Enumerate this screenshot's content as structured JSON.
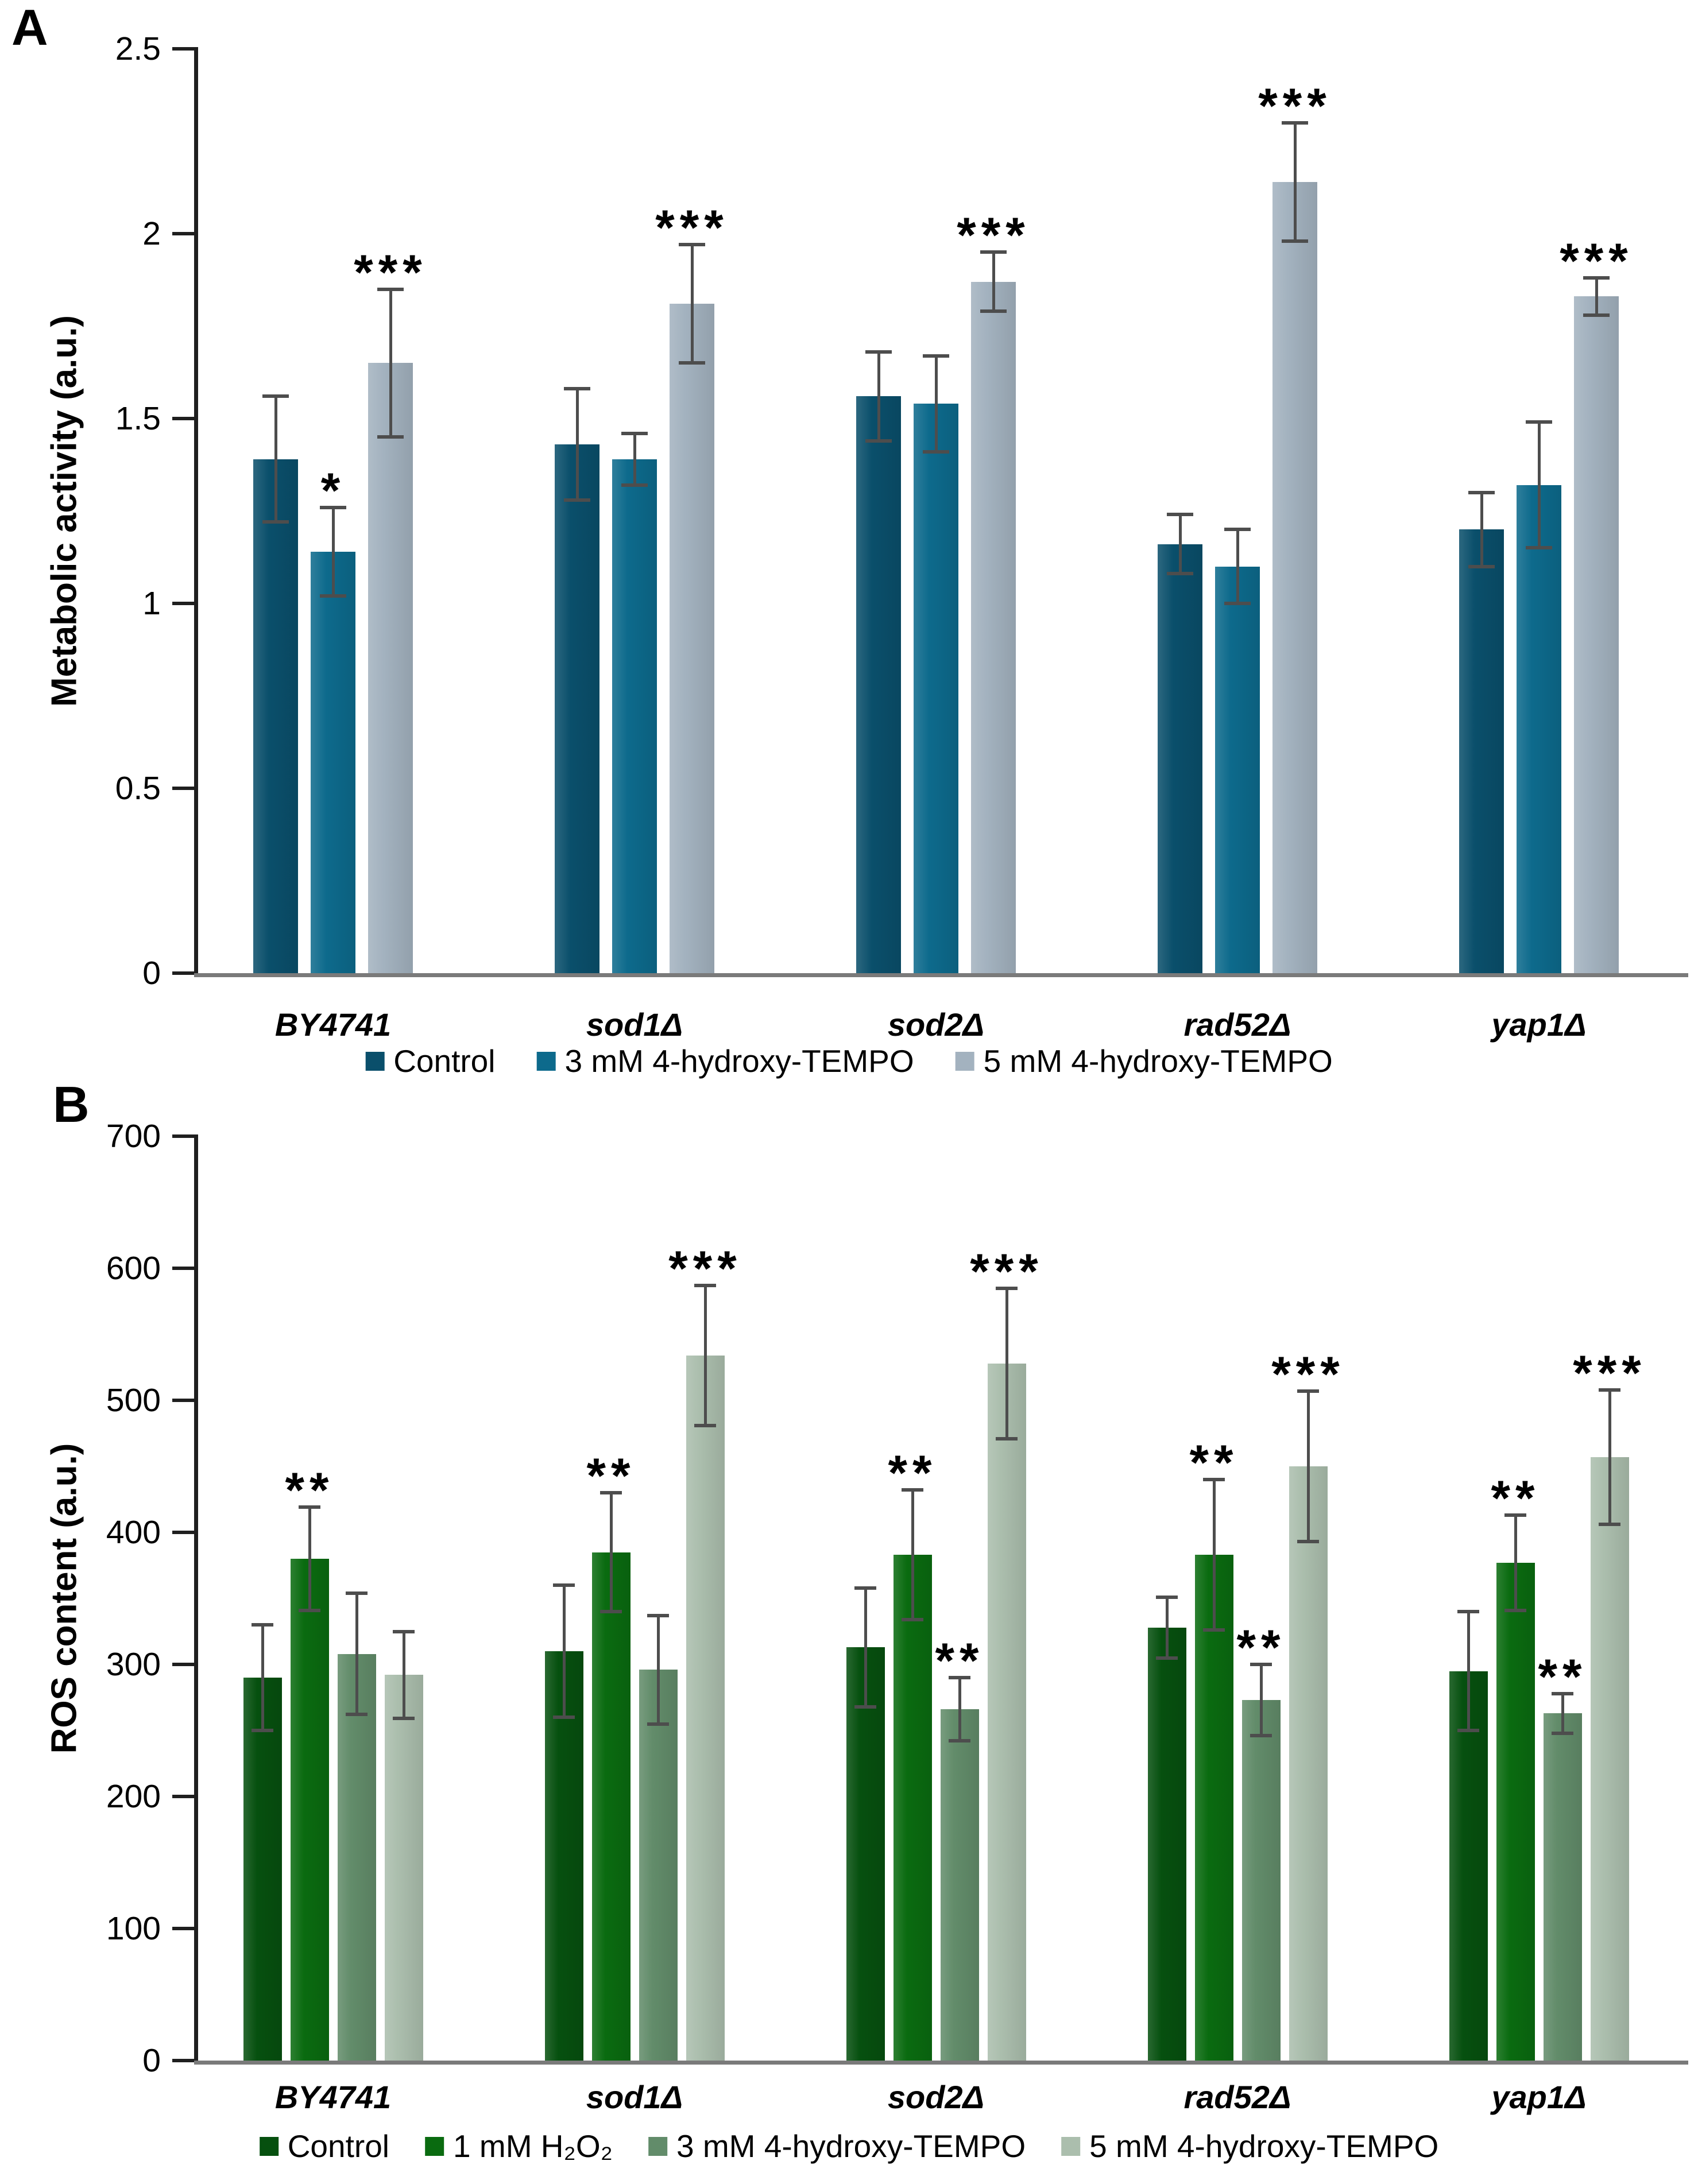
{
  "figure": {
    "panel_a_letter": "A",
    "panel_b_letter": "B"
  },
  "chart_data": [
    {
      "panel_label": "A",
      "type": "bar",
      "title": "",
      "xlabel": "",
      "ylabel": "Metabolic activity (a.u.)",
      "ylim": [
        0,
        2.5
      ],
      "ytick_labels": [
        "0",
        "0.5",
        "1",
        "1.5",
        "2",
        "2.5"
      ],
      "grid": false,
      "legend_position": "bottom",
      "error_bar_color": "#4d4d4d",
      "categories": [
        "BY4741",
        "sod1Δ",
        "sod2Δ",
        "rad52Δ",
        "yap1Δ"
      ],
      "series": [
        {
          "name": "Control",
          "color": "#0a4f6b",
          "values": [
            1.39,
            1.43,
            1.56,
            1.16,
            1.2
          ],
          "errors": [
            0.17,
            0.15,
            0.12,
            0.08,
            0.1
          ],
          "significance": [
            "",
            "",
            "",
            "",
            ""
          ]
        },
        {
          "name": "3 mM 4-hydroxy-TEMPO",
          "color": "#0d6a8c",
          "values": [
            1.14,
            1.39,
            1.54,
            1.1,
            1.32
          ],
          "errors": [
            0.12,
            0.07,
            0.13,
            0.1,
            0.17
          ],
          "significance": [
            "*",
            "",
            "",
            "",
            ""
          ]
        },
        {
          "name": "5 mM 4-hydroxy-TEMPO",
          "color": "#a3b2bf",
          "values": [
            1.65,
            1.81,
            1.87,
            2.14,
            1.83
          ],
          "errors": [
            0.2,
            0.16,
            0.08,
            0.16,
            0.05
          ],
          "significance": [
            "***",
            "***",
            "***",
            "***",
            "***"
          ]
        }
      ]
    },
    {
      "panel_label": "B",
      "type": "bar",
      "title": "",
      "xlabel": "",
      "ylabel": "ROS content (a.u.)",
      "ylim": [
        0,
        700
      ],
      "ytick_labels": [
        "0",
        "100",
        "200",
        "300",
        "400",
        "500",
        "600",
        "700"
      ],
      "grid": false,
      "legend_position": "bottom",
      "error_bar_color": "#4d4d4d",
      "categories": [
        "BY4741",
        "sod1Δ",
        "sod2Δ",
        "rad52Δ",
        "yap1Δ"
      ],
      "series": [
        {
          "name": "Control",
          "color": "#06500f",
          "values": [
            290,
            310,
            313,
            328,
            295
          ],
          "errors": [
            40,
            50,
            45,
            23,
            45
          ],
          "significance": [
            "",
            "",
            "",
            "",
            ""
          ]
        },
        {
          "name": "1 mM H₂O₂",
          "color": "#0a6b10",
          "values": [
            380,
            385,
            383,
            383,
            377
          ],
          "errors": [
            39,
            45,
            49,
            57,
            36
          ],
          "significance": [
            "**",
            "**",
            "**",
            "**",
            "**"
          ]
        },
        {
          "name": "3 mM 4-hydroxy-TEMPO",
          "color": "#628c6a",
          "values": [
            308,
            296,
            266,
            273,
            263
          ],
          "errors": [
            46,
            41,
            24,
            27,
            15
          ],
          "significance": [
            "",
            "",
            "**",
            "**",
            "**"
          ]
        },
        {
          "name": "5 mM 4-hydroxy-TEMPO",
          "color": "#abbead",
          "values": [
            292,
            534,
            528,
            450,
            457
          ],
          "errors": [
            33,
            53,
            57,
            57,
            51
          ],
          "significance": [
            "",
            "***",
            "***",
            "***",
            "***"
          ]
        }
      ]
    }
  ]
}
